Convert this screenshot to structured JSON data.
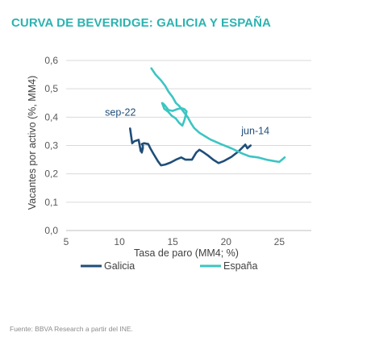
{
  "title": "CURVA DE BEVERIDGE: GALICIA Y ESPAÑA",
  "source": "Fuente: BBVA Research a partir del INE.",
  "chart_data": {
    "type": "line",
    "xlabel": "Tasa de paro (MM4; %)",
    "ylabel": "Vacantes por activo (%, MM4)",
    "xlim": [
      5,
      28
    ],
    "ylim": [
      0,
      0.6
    ],
    "x_ticks": [
      "5",
      "10",
      "15",
      "20",
      "25"
    ],
    "x_tick_values": [
      5,
      10,
      15,
      20,
      25
    ],
    "y_ticks": [
      "0,0",
      "0,1",
      "0,2",
      "0,3",
      "0,4",
      "0,5",
      "0,6"
    ],
    "y_tick_values": [
      0,
      0.1,
      0.2,
      0.3,
      0.4,
      0.5,
      0.6
    ],
    "grid": "horizontal",
    "legend": "bottom",
    "series": [
      {
        "name": "Galicia",
        "color": "#1f4e79",
        "points": [
          [
            22.3,
            0.3
          ],
          [
            22.0,
            0.29
          ],
          [
            21.8,
            0.303
          ],
          [
            21.2,
            0.28
          ],
          [
            20.5,
            0.26
          ],
          [
            19.8,
            0.245
          ],
          [
            19.3,
            0.238
          ],
          [
            18.8,
            0.25
          ],
          [
            18.3,
            0.265
          ],
          [
            17.8,
            0.278
          ],
          [
            17.5,
            0.285
          ],
          [
            17.2,
            0.275
          ],
          [
            16.8,
            0.25
          ],
          [
            16.2,
            0.25
          ],
          [
            15.8,
            0.258
          ],
          [
            15.3,
            0.25
          ],
          [
            14.8,
            0.24
          ],
          [
            14.3,
            0.233
          ],
          [
            13.9,
            0.23
          ],
          [
            13.6,
            0.245
          ],
          [
            13.2,
            0.27
          ],
          [
            12.9,
            0.29
          ],
          [
            12.7,
            0.305
          ],
          [
            12.3,
            0.308
          ],
          [
            12.1,
            0.305
          ],
          [
            12.2,
            0.3
          ],
          [
            12.1,
            0.275
          ],
          [
            12.2,
            0.292
          ],
          [
            12.0,
            0.28
          ],
          [
            11.9,
            0.3
          ],
          [
            11.8,
            0.32
          ],
          [
            11.4,
            0.315
          ],
          [
            11.2,
            0.308
          ],
          [
            11.0,
            0.36
          ]
        ]
      },
      {
        "name": "España",
        "color": "#3cc5c2",
        "points": [
          [
            25.5,
            0.258
          ],
          [
            25.0,
            0.242
          ],
          [
            24.5,
            0.245
          ],
          [
            23.8,
            0.25
          ],
          [
            23.0,
            0.258
          ],
          [
            22.2,
            0.262
          ],
          [
            21.5,
            0.272
          ],
          [
            20.5,
            0.29
          ],
          [
            19.5,
            0.305
          ],
          [
            18.5,
            0.322
          ],
          [
            17.5,
            0.345
          ],
          [
            17.0,
            0.362
          ],
          [
            16.7,
            0.38
          ],
          [
            16.4,
            0.4
          ],
          [
            16.0,
            0.42
          ],
          [
            15.6,
            0.44
          ],
          [
            15.3,
            0.45
          ],
          [
            15.0,
            0.47
          ],
          [
            14.6,
            0.49
          ],
          [
            14.3,
            0.51
          ],
          [
            13.9,
            0.53
          ],
          [
            13.4,
            0.55
          ],
          [
            13.0,
            0.572
          ]
        ]
      },
      {
        "name": "España",
        "color": "#3cc5c2",
        "points": [
          [
            14.0,
            0.45
          ],
          [
            14.2,
            0.43
          ],
          [
            14.6,
            0.418
          ],
          [
            14.9,
            0.405
          ],
          [
            15.3,
            0.395
          ],
          [
            15.6,
            0.38
          ],
          [
            15.9,
            0.37
          ],
          [
            16.1,
            0.39
          ],
          [
            16.3,
            0.42
          ],
          [
            16.1,
            0.428
          ],
          [
            15.8,
            0.432
          ],
          [
            15.4,
            0.428
          ],
          [
            15.0,
            0.422
          ],
          [
            14.6,
            0.425
          ],
          [
            14.3,
            0.44
          ],
          [
            14.1,
            0.448
          ]
        ]
      }
    ],
    "annotations": [
      {
        "text": "sep-22",
        "x": 11.0,
        "y": 0.365
      },
      {
        "text": "jun-14",
        "x": 22.3,
        "y": 0.3
      }
    ]
  }
}
